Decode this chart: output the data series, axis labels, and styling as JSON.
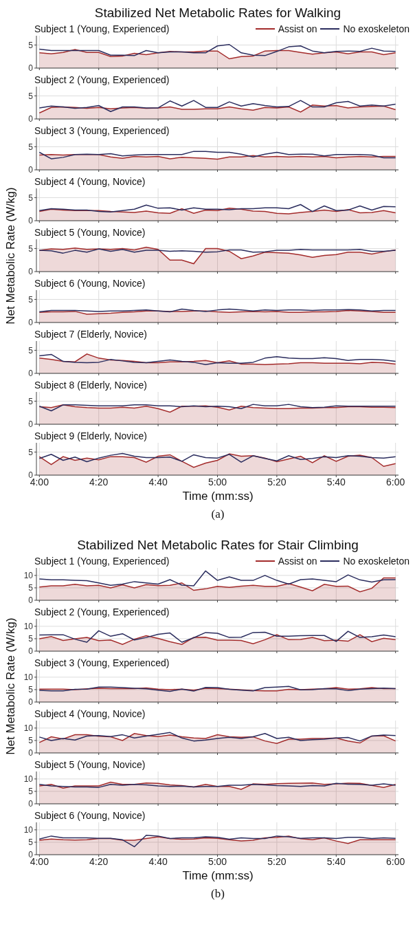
{
  "chart_data": [
    {
      "type": "line",
      "title": "Stabilized Net Metabolic Rates for Walking",
      "subtitle": "Subject 1 (Young, Experienced)",
      "legend": "top right",
      "grid": true,
      "tick_labels": "y",
      "x": [
        240,
        244,
        248,
        252,
        256,
        260,
        264,
        268,
        272,
        276,
        280,
        284,
        288,
        292,
        296,
        300,
        304,
        308,
        312,
        316,
        320,
        324,
        328,
        332,
        336,
        340,
        344,
        348,
        352,
        356,
        360
      ],
      "xlim": [
        239,
        361
      ],
      "xticks": [
        {
          "value": 240,
          "label": null
        },
        {
          "value": 260,
          "label": null
        },
        {
          "value": 280,
          "label": null
        },
        {
          "value": 300,
          "label": null
        },
        {
          "value": 320,
          "label": null
        },
        {
          "value": 340,
          "label": null
        },
        {
          "value": 360,
          "label": null
        }
      ],
      "ylim": [
        0,
        7
      ],
      "yticks": [
        0,
        5
      ],
      "series": [
        {
          "name": "Assist on",
          "type": "area",
          "color": "#a32b2b",
          "values": [
            3.3,
            3.1,
            3.4,
            4.0,
            3.4,
            3.4,
            2.5,
            2.6,
            3.2,
            2.9,
            3.3,
            3.6,
            3.5,
            3.5,
            3.7,
            3.7,
            2.0,
            2.5,
            2.6,
            3.7,
            3.8,
            3.8,
            3.4,
            3.0,
            3.3,
            3.5,
            3.1,
            3.5,
            3.5,
            2.9,
            3.3
          ]
        },
        {
          "name": "No exoskeleton",
          "type": "line",
          "color": "#2b2d5e",
          "values": [
            4.1,
            3.8,
            3.8,
            3.8,
            3.8,
            3.8,
            2.8,
            2.8,
            2.7,
            3.8,
            3.3,
            3.5,
            3.5,
            3.3,
            3.3,
            4.8,
            5.1,
            3.3,
            2.8,
            2.7,
            3.6,
            4.6,
            4.8,
            3.7,
            3.3,
            3.6,
            3.7,
            3.6,
            4.3,
            3.7,
            3.6
          ]
        }
      ]
    },
    {
      "type": "line",
      "subtitle": "Subject 2 (Young, Experienced)",
      "grid": true,
      "tick_labels": "y",
      "x": [
        240,
        244,
        248,
        252,
        256,
        260,
        264,
        268,
        272,
        276,
        280,
        284,
        288,
        292,
        296,
        300,
        304,
        308,
        312,
        316,
        320,
        324,
        328,
        332,
        336,
        340,
        344,
        348,
        352,
        356,
        360
      ],
      "xlim": [
        239,
        361
      ],
      "xticks": [
        {
          "value": 240,
          "label": null
        },
        {
          "value": 260,
          "label": null
        },
        {
          "value": 280,
          "label": null
        },
        {
          "value": 300,
          "label": null
        },
        {
          "value": 320,
          "label": null
        },
        {
          "value": 340,
          "label": null
        },
        {
          "value": 360,
          "label": null
        }
      ],
      "ylim": [
        0,
        7
      ],
      "yticks": [
        0,
        5
      ],
      "series": [
        {
          "type": "area",
          "color": "#a32b2b",
          "values": [
            1.3,
            2.5,
            2.6,
            2.5,
            2.3,
            2.5,
            2.2,
            2.4,
            2.5,
            2.3,
            2.4,
            2.6,
            2.1,
            2.1,
            2.2,
            2.2,
            2.6,
            2.2,
            1.9,
            2.5,
            2.4,
            2.6,
            1.5,
            3.0,
            2.8,
            2.9,
            2.4,
            2.6,
            2.7,
            2.8,
            2.0
          ]
        },
        {
          "type": "line",
          "color": "#2b2d5e",
          "values": [
            2.4,
            2.8,
            2.6,
            2.3,
            2.5,
            2.9,
            1.6,
            2.6,
            2.6,
            2.4,
            2.4,
            3.9,
            2.8,
            4.0,
            2.5,
            2.5,
            3.7,
            2.8,
            3.3,
            2.9,
            2.6,
            2.7,
            4.0,
            2.6,
            2.6,
            3.5,
            3.8,
            2.8,
            3.0,
            2.8,
            3.2
          ]
        }
      ]
    },
    {
      "type": "line",
      "subtitle": "Subject 3 (Young, Experienced)",
      "grid": true,
      "tick_labels": "y",
      "x": [
        240,
        244,
        248,
        252,
        256,
        260,
        264,
        268,
        272,
        276,
        280,
        284,
        288,
        292,
        296,
        300,
        304,
        308,
        312,
        316,
        320,
        324,
        328,
        332,
        336,
        340,
        344,
        348,
        352,
        356,
        360
      ],
      "xlim": [
        239,
        361
      ],
      "xticks": [
        {
          "value": 240,
          "label": null
        },
        {
          "value": 260,
          "label": null
        },
        {
          "value": 280,
          "label": null
        },
        {
          "value": 300,
          "label": null
        },
        {
          "value": 320,
          "label": null
        },
        {
          "value": 340,
          "label": null
        },
        {
          "value": 360,
          "label": null
        }
      ],
      "ylim": [
        0,
        7
      ],
      "yticks": [
        0,
        5
      ],
      "series": [
        {
          "type": "area",
          "color": "#a32b2b",
          "values": [
            3.2,
            3.3,
            3.2,
            3.3,
            3.3,
            3.3,
            2.8,
            2.5,
            2.9,
            2.8,
            2.9,
            2.4,
            2.7,
            2.6,
            2.5,
            2.3,
            2.8,
            2.8,
            3.1,
            2.8,
            2.9,
            2.8,
            2.9,
            2.8,
            2.9,
            2.6,
            2.8,
            2.9,
            2.8,
            2.9,
            2.9
          ]
        },
        {
          "type": "line",
          "color": "#2b2d5e",
          "values": [
            3.8,
            2.4,
            2.7,
            3.3,
            3.4,
            3.3,
            3.5,
            3.0,
            3.2,
            3.3,
            3.3,
            3.3,
            3.3,
            4.0,
            4.0,
            3.8,
            3.8,
            3.4,
            2.8,
            3.4,
            3.8,
            3.3,
            3.4,
            3.4,
            3.0,
            3.3,
            3.3,
            3.3,
            3.2,
            2.6,
            2.6
          ]
        }
      ]
    },
    {
      "type": "line",
      "subtitle": "Subject 4 (Young, Novice)",
      "grid": true,
      "tick_labels": "y",
      "x": [
        240,
        244,
        248,
        252,
        256,
        260,
        264,
        268,
        272,
        276,
        280,
        284,
        288,
        292,
        296,
        300,
        304,
        308,
        312,
        316,
        320,
        324,
        328,
        332,
        336,
        340,
        344,
        348,
        352,
        356,
        360
      ],
      "xlim": [
        239,
        361
      ],
      "xticks": [
        {
          "value": 240,
          "label": null
        },
        {
          "value": 260,
          "label": null
        },
        {
          "value": 280,
          "label": null
        },
        {
          "value": 300,
          "label": null
        },
        {
          "value": 320,
          "label": null
        },
        {
          "value": 340,
          "label": null
        },
        {
          "value": 360,
          "label": null
        }
      ],
      "ylim": [
        0,
        7
      ],
      "yticks": [
        0,
        5
      ],
      "series": [
        {
          "type": "area",
          "color": "#a32b2b",
          "values": [
            2.0,
            2.5,
            2.3,
            2.2,
            2.2,
            2.2,
            2.0,
            1.9,
            1.8,
            2.1,
            1.7,
            1.6,
            2.6,
            1.6,
            2.3,
            2.2,
            2.7,
            2.5,
            2.1,
            2.0,
            1.6,
            1.5,
            1.8,
            2.0,
            2.3,
            2.0,
            2.4,
            1.7,
            1.8,
            2.2,
            1.7
          ]
        },
        {
          "type": "line",
          "color": "#2b2d5e",
          "values": [
            2.2,
            2.6,
            2.5,
            2.3,
            2.3,
            2.0,
            1.9,
            2.2,
            2.5,
            3.4,
            2.7,
            2.8,
            2.3,
            2.8,
            2.5,
            2.5,
            2.4,
            2.6,
            2.6,
            2.8,
            2.8,
            2.6,
            3.5,
            2.0,
            3.2,
            2.2,
            2.3,
            3.2,
            2.3,
            3.1,
            3.0
          ]
        }
      ]
    },
    {
      "type": "line",
      "subtitle": "Subject 5 (Young, Novice)",
      "ylabel": "Net Metabolic Rate (W/kg)",
      "grid": true,
      "tick_labels": "y",
      "x": [
        240,
        244,
        248,
        252,
        256,
        260,
        264,
        268,
        272,
        276,
        280,
        284,
        288,
        292,
        296,
        300,
        304,
        308,
        312,
        316,
        320,
        324,
        328,
        332,
        336,
        340,
        344,
        348,
        352,
        356,
        360
      ],
      "xlim": [
        239,
        361
      ],
      "xticks": [
        {
          "value": 240,
          "label": null
        },
        {
          "value": 260,
          "label": null
        },
        {
          "value": 280,
          "label": null
        },
        {
          "value": 300,
          "label": null
        },
        {
          "value": 320,
          "label": null
        },
        {
          "value": 340,
          "label": null
        },
        {
          "value": 360,
          "label": null
        }
      ],
      "ylim": [
        0,
        7
      ],
      "yticks": [
        0,
        5
      ],
      "series": [
        {
          "type": "area",
          "color": "#a32b2b",
          "values": [
            4.6,
            4.9,
            4.8,
            5.1,
            4.8,
            4.9,
            4.8,
            5.0,
            4.7,
            5.3,
            4.8,
            2.5,
            2.5,
            1.7,
            5.0,
            5.0,
            4.4,
            2.8,
            3.4,
            4.2,
            4.1,
            4.0,
            3.6,
            3.1,
            3.5,
            3.7,
            4.2,
            4.2,
            3.8,
            4.3,
            4.7
          ]
        },
        {
          "type": "line",
          "color": "#2b2d5e",
          "values": [
            4.6,
            4.5,
            4.0,
            4.6,
            4.2,
            4.9,
            4.4,
            4.8,
            4.2,
            4.6,
            4.6,
            4.4,
            4.5,
            4.4,
            4.2,
            4.3,
            4.7,
            4.7,
            4.2,
            4.3,
            4.6,
            4.6,
            4.8,
            4.7,
            4.7,
            4.7,
            4.7,
            4.8,
            4.4,
            4.4,
            4.6
          ]
        }
      ]
    },
    {
      "type": "line",
      "subtitle": "Subject 6 (Young, Novice)",
      "grid": true,
      "tick_labels": "y",
      "x": [
        240,
        244,
        248,
        252,
        256,
        260,
        264,
        268,
        272,
        276,
        280,
        284,
        288,
        292,
        296,
        300,
        304,
        308,
        312,
        316,
        320,
        324,
        328,
        332,
        336,
        340,
        344,
        348,
        352,
        356,
        360
      ],
      "xlim": [
        239,
        361
      ],
      "xticks": [
        {
          "value": 240,
          "label": null
        },
        {
          "value": 260,
          "label": null
        },
        {
          "value": 280,
          "label": null
        },
        {
          "value": 300,
          "label": null
        },
        {
          "value": 320,
          "label": null
        },
        {
          "value": 340,
          "label": null
        },
        {
          "value": 360,
          "label": null
        }
      ],
      "ylim": [
        0,
        7
      ],
      "yticks": [
        0,
        5
      ],
      "series": [
        {
          "type": "area",
          "color": "#a32b2b",
          "values": [
            2.2,
            2.3,
            2.3,
            2.4,
            1.8,
            1.9,
            2.0,
            2.2,
            2.3,
            2.5,
            2.5,
            2.4,
            2.4,
            2.5,
            2.5,
            2.3,
            2.2,
            2.3,
            2.4,
            2.3,
            2.4,
            2.2,
            2.2,
            2.3,
            2.3,
            2.4,
            2.6,
            2.5,
            2.4,
            2.2,
            2.2
          ]
        },
        {
          "type": "line",
          "color": "#2b2d5e",
          "values": [
            2.3,
            2.6,
            2.6,
            2.6,
            2.5,
            2.4,
            2.5,
            2.5,
            2.6,
            2.7,
            2.5,
            2.3,
            2.9,
            2.6,
            2.4,
            2.7,
            2.9,
            2.7,
            2.5,
            2.7,
            2.6,
            2.7,
            2.7,
            2.6,
            2.7,
            2.7,
            2.8,
            2.7,
            2.5,
            2.6,
            2.6
          ]
        }
      ]
    },
    {
      "type": "line",
      "subtitle": "Subject 7 (Elderly, Novice)",
      "grid": true,
      "tick_labels": "y",
      "x": [
        240,
        244,
        248,
        252,
        256,
        260,
        264,
        268,
        272,
        276,
        280,
        284,
        288,
        292,
        296,
        300,
        304,
        308,
        312,
        316,
        320,
        324,
        328,
        332,
        336,
        340,
        344,
        348,
        352,
        356,
        360
      ],
      "xlim": [
        239,
        361
      ],
      "xticks": [
        {
          "value": 240,
          "label": null
        },
        {
          "value": 260,
          "label": null
        },
        {
          "value": 280,
          "label": null
        },
        {
          "value": 300,
          "label": null
        },
        {
          "value": 320,
          "label": null
        },
        {
          "value": 340,
          "label": null
        },
        {
          "value": 360,
          "label": null
        }
      ],
      "ylim": [
        0,
        7
      ],
      "yticks": [
        0,
        5
      ],
      "series": [
        {
          "type": "area",
          "color": "#a32b2b",
          "values": [
            3.3,
            3.0,
            2.6,
            2.5,
            4.2,
            3.3,
            2.9,
            2.8,
            2.6,
            2.3,
            2.3,
            2.5,
            2.5,
            2.6,
            2.8,
            2.3,
            2.7,
            2.0,
            2.0,
            1.9,
            2.0,
            2.1,
            2.3,
            2.3,
            2.2,
            2.2,
            2.2,
            2.1,
            2.4,
            2.3,
            2.0
          ]
        },
        {
          "type": "line",
          "color": "#2b2d5e",
          "values": [
            3.8,
            4.1,
            2.6,
            2.4,
            2.3,
            2.4,
            3.0,
            2.7,
            2.4,
            2.3,
            2.6,
            2.9,
            2.6,
            2.4,
            1.9,
            2.3,
            2.2,
            2.2,
            2.4,
            3.3,
            3.6,
            3.3,
            3.2,
            3.2,
            3.4,
            3.2,
            2.8,
            3.0,
            3.0,
            2.9,
            2.6
          ]
        }
      ]
    },
    {
      "type": "line",
      "subtitle": "Subject 8 (Elderly, Novice)",
      "grid": true,
      "tick_labels": "y",
      "x": [
        240,
        244,
        248,
        252,
        256,
        260,
        264,
        268,
        272,
        276,
        280,
        284,
        288,
        292,
        296,
        300,
        304,
        308,
        312,
        316,
        320,
        324,
        328,
        332,
        336,
        340,
        344,
        348,
        352,
        356,
        360
      ],
      "xlim": [
        239,
        361
      ],
      "xticks": [
        {
          "value": 240,
          "label": null
        },
        {
          "value": 260,
          "label": null
        },
        {
          "value": 280,
          "label": null
        },
        {
          "value": 300,
          "label": null
        },
        {
          "value": 320,
          "label": null
        },
        {
          "value": 340,
          "label": null
        },
        {
          "value": 360,
          "label": null
        }
      ],
      "ylim": [
        0,
        7
      ],
      "yticks": [
        0,
        5
      ],
      "series": [
        {
          "type": "area",
          "color": "#a32b2b",
          "values": [
            3.8,
            3.6,
            4.2,
            3.8,
            3.6,
            3.5,
            3.5,
            3.7,
            3.5,
            3.9,
            3.4,
            2.6,
            3.9,
            3.9,
            4.0,
            3.7,
            3.1,
            3.9,
            3.6,
            3.5,
            3.4,
            3.4,
            3.5,
            3.5,
            3.6,
            3.6,
            3.8,
            3.8,
            3.7,
            3.7,
            3.6
          ]
        },
        {
          "type": "line",
          "color": "#2b2d5e",
          "values": [
            3.9,
            2.9,
            4.2,
            4.2,
            4.1,
            4.0,
            4.0,
            4.0,
            4.2,
            4.2,
            4.0,
            4.0,
            3.8,
            4.0,
            3.8,
            3.9,
            3.8,
            3.4,
            4.3,
            4.0,
            4.0,
            4.3,
            3.8,
            3.6,
            3.7,
            4.0,
            3.9,
            3.9,
            3.9,
            3.9,
            3.9
          ]
        }
      ]
    },
    {
      "type": "line",
      "subtitle": "Subject 9 (Elderly, Novice)",
      "xlabel": "Time (mm:ss)",
      "annotations": [
        "(a)"
      ],
      "grid": true,
      "x": [
        240,
        244,
        248,
        252,
        256,
        260,
        264,
        268,
        272,
        276,
        280,
        284,
        288,
        292,
        296,
        300,
        304,
        308,
        312,
        316,
        320,
        324,
        328,
        332,
        336,
        340,
        344,
        348,
        352,
        356,
        360
      ],
      "xlim": [
        239,
        361
      ],
      "xticks": [
        {
          "value": 240,
          "label": "4:00"
        },
        {
          "value": 260,
          "label": "4:20"
        },
        {
          "value": 280,
          "label": "4:40"
        },
        {
          "value": 300,
          "label": "5:00"
        },
        {
          "value": 320,
          "label": "5:20"
        },
        {
          "value": 340,
          "label": "5:40"
        },
        {
          "value": 360,
          "label": "6:00"
        }
      ],
      "ylim": [
        0,
        7
      ],
      "yticks": [
        0,
        5
      ],
      "series": [
        {
          "type": "area",
          "color": "#a32b2b",
          "values": [
            4.0,
            2.3,
            4.0,
            3.2,
            3.7,
            3.3,
            4.0,
            4.0,
            3.8,
            2.8,
            4.1,
            4.4,
            3.0,
            1.7,
            2.6,
            3.2,
            4.6,
            4.1,
            4.2,
            3.7,
            2.9,
            3.5,
            4.1,
            2.7,
            4.2,
            3.0,
            4.1,
            4.3,
            3.8,
            1.9,
            2.5
          ]
        },
        {
          "type": "line",
          "color": "#2b2d5e",
          "values": [
            3.6,
            4.5,
            3.2,
            3.9,
            2.9,
            3.7,
            4.3,
            4.7,
            4.1,
            3.8,
            3.8,
            3.9,
            3.0,
            4.4,
            3.8,
            3.7,
            4.5,
            2.8,
            4.2,
            3.6,
            3.1,
            4.2,
            3.4,
            3.6,
            4.0,
            3.8,
            4.2,
            4.1,
            3.8,
            3.7,
            4.0
          ]
        }
      ]
    },
    {
      "type": "line",
      "title": "Stabilized Net Metabolic Rates for Stair Climbing",
      "subtitle": "Subject 1 (Young, Experienced)",
      "legend": "top right",
      "grid": true,
      "tick_labels": "y",
      "x": [
        240,
        244,
        248,
        252,
        256,
        260,
        264,
        268,
        272,
        276,
        280,
        284,
        288,
        292,
        296,
        300,
        304,
        308,
        312,
        316,
        320,
        324,
        328,
        332,
        336,
        340,
        344,
        348,
        352,
        356,
        360
      ],
      "xlim": [
        239,
        361
      ],
      "xticks": [
        {
          "value": 240,
          "label": null
        },
        {
          "value": 260,
          "label": null
        },
        {
          "value": 280,
          "label": null
        },
        {
          "value": 300,
          "label": null
        },
        {
          "value": 320,
          "label": null
        },
        {
          "value": 340,
          "label": null
        },
        {
          "value": 360,
          "label": null
        }
      ],
      "ylim": [
        0,
        13
      ],
      "yticks": [
        0,
        5,
        10
      ],
      "series": [
        {
          "name": "Assist on",
          "type": "area",
          "color": "#a32b2b",
          "values": [
            5.3,
            5.8,
            5.8,
            6.4,
            5.8,
            6.0,
            5.0,
            6.2,
            5.0,
            6.3,
            5.9,
            6.0,
            7.0,
            4.0,
            4.6,
            5.6,
            5.2,
            5.7,
            6.0,
            5.6,
            5.6,
            6.7,
            5.3,
            3.8,
            6.4,
            5.6,
            5.7,
            3.4,
            4.8,
            9.0,
            9.0
          ]
        },
        {
          "name": "No exoskeleton",
          "type": "line",
          "color": "#2b2d5e",
          "values": [
            8.6,
            8.2,
            8.2,
            8.0,
            7.9,
            7.0,
            6.0,
            6.5,
            7.5,
            7.0,
            6.5,
            8.3,
            6.1,
            5.8,
            11.8,
            8.0,
            9.4,
            8.0,
            8.0,
            10.0,
            8.0,
            6.5,
            8.3,
            8.6,
            8.0,
            7.5,
            10.2,
            8.2,
            7.3,
            8.2,
            8.3
          ]
        }
      ]
    },
    {
      "type": "line",
      "subtitle": "Subject 2 (Young, Experienced)",
      "grid": true,
      "tick_labels": "y",
      "x": [
        240,
        244,
        248,
        252,
        256,
        260,
        264,
        268,
        272,
        276,
        280,
        284,
        288,
        292,
        296,
        300,
        304,
        308,
        312,
        316,
        320,
        324,
        328,
        332,
        336,
        340,
        344,
        348,
        352,
        356,
        360
      ],
      "xlim": [
        239,
        361
      ],
      "xticks": [
        {
          "value": 240,
          "label": null
        },
        {
          "value": 260,
          "label": null
        },
        {
          "value": 280,
          "label": null
        },
        {
          "value": 300,
          "label": null
        },
        {
          "value": 320,
          "label": null
        },
        {
          "value": 340,
          "label": null
        },
        {
          "value": 360,
          "label": null
        }
      ],
      "ylim": [
        0,
        13
      ],
      "yticks": [
        0,
        5,
        10
      ],
      "series": [
        {
          "type": "area",
          "color": "#a32b2b",
          "values": [
            5.0,
            5.9,
            4.3,
            5.0,
            5.5,
            4.2,
            4.5,
            2.7,
            4.8,
            6.2,
            5.1,
            3.8,
            2.7,
            5.5,
            5.6,
            4.4,
            4.4,
            4.3,
            3.0,
            4.6,
            6.6,
            4.6,
            4.7,
            5.5,
            4.2,
            4.4,
            4.0,
            6.6,
            3.8,
            5.2,
            4.6
          ]
        },
        {
          "type": "line",
          "color": "#2b2d5e",
          "values": [
            6.5,
            6.6,
            6.6,
            4.8,
            3.6,
            8.2,
            6.0,
            7.0,
            4.5,
            5.5,
            6.8,
            7.3,
            3.6,
            5.4,
            7.5,
            7.2,
            5.5,
            5.6,
            7.5,
            7.6,
            6.0,
            6.0,
            6.2,
            6.3,
            6.3,
            3.9,
            8.0,
            5.5,
            5.8,
            6.5,
            5.8
          ]
        }
      ]
    },
    {
      "type": "line",
      "subtitle": "Subject 3 (Young, Experienced)",
      "ylabel": "Net Metabolic Rate (W/kg)",
      "grid": true,
      "tick_labels": "y",
      "x": [
        240,
        244,
        248,
        252,
        256,
        260,
        264,
        268,
        272,
        276,
        280,
        284,
        288,
        292,
        296,
        300,
        304,
        308,
        312,
        316,
        320,
        324,
        328,
        332,
        336,
        340,
        344,
        348,
        352,
        356,
        360
      ],
      "xlim": [
        239,
        361
      ],
      "xticks": [
        {
          "value": 240,
          "label": null
        },
        {
          "value": 260,
          "label": null
        },
        {
          "value": 280,
          "label": null
        },
        {
          "value": 300,
          "label": null
        },
        {
          "value": 320,
          "label": null
        },
        {
          "value": 340,
          "label": null
        },
        {
          "value": 360,
          "label": null
        }
      ],
      "ylim": [
        0,
        13
      ],
      "yticks": [
        0,
        5,
        10
      ],
      "series": [
        {
          "type": "area",
          "color": "#a32b2b",
          "values": [
            5.2,
            5.2,
            5.2,
            5.0,
            5.3,
            5.5,
            5.4,
            5.4,
            5.4,
            5.7,
            5.2,
            5.0,
            5.2,
            4.8,
            5.5,
            5.4,
            5.2,
            4.9,
            4.6,
            4.5,
            4.5,
            5.1,
            5.0,
            5.2,
            5.3,
            5.8,
            5.2,
            5.3,
            5.8,
            5.4,
            5.4
          ]
        },
        {
          "type": "line",
          "color": "#2b2d5e",
          "values": [
            4.7,
            4.5,
            4.5,
            5.1,
            5.2,
            6.0,
            6.0,
            5.8,
            5.5,
            5.3,
            4.8,
            4.3,
            5.2,
            4.4,
            5.9,
            5.8,
            5.1,
            4.8,
            4.5,
            5.8,
            6.0,
            6.3,
            4.9,
            5.0,
            5.4,
            5.3,
            4.6,
            5.2,
            5.4,
            5.6,
            5.4
          ]
        }
      ]
    },
    {
      "type": "line",
      "subtitle": "Subject 4 (Young, Novice)",
      "grid": true,
      "tick_labels": "y",
      "x": [
        240,
        244,
        248,
        252,
        256,
        260,
        264,
        268,
        272,
        276,
        280,
        284,
        288,
        292,
        296,
        300,
        304,
        308,
        312,
        316,
        320,
        324,
        328,
        332,
        336,
        340,
        344,
        348,
        352,
        356,
        360
      ],
      "xlim": [
        239,
        361
      ],
      "xticks": [
        {
          "value": 240,
          "label": null
        },
        {
          "value": 260,
          "label": null
        },
        {
          "value": 280,
          "label": null
        },
        {
          "value": 300,
          "label": null
        },
        {
          "value": 320,
          "label": null
        },
        {
          "value": 340,
          "label": null
        },
        {
          "value": 360,
          "label": null
        }
      ],
      "ylim": [
        0,
        13
      ],
      "yticks": [
        0,
        5,
        10
      ],
      "series": [
        {
          "type": "area",
          "color": "#a32b2b",
          "values": [
            4.2,
            6.5,
            5.6,
            7.3,
            7.3,
            6.7,
            6.5,
            5.0,
            7.8,
            7.0,
            6.6,
            7.2,
            6.5,
            6.0,
            5.8,
            7.3,
            6.5,
            6.3,
            6.5,
            4.8,
            3.8,
            5.5,
            5.5,
            5.8,
            5.8,
            6.0,
            4.8,
            4.0,
            6.8,
            6.9,
            4.8
          ]
        },
        {
          "type": "line",
          "color": "#2b2d5e",
          "values": [
            6.4,
            5.0,
            5.8,
            5.2,
            6.8,
            7.0,
            6.6,
            7.3,
            6.0,
            6.8,
            7.5,
            8.2,
            6.0,
            4.8,
            5.2,
            5.8,
            6.3,
            5.8,
            6.5,
            7.8,
            5.8,
            6.3,
            5.0,
            5.3,
            5.5,
            6.0,
            6.2,
            4.8,
            6.8,
            7.2,
            7.0
          ]
        }
      ]
    },
    {
      "type": "line",
      "subtitle": "Subject 5 (Young, Novice)",
      "grid": true,
      "tick_labels": "y",
      "x": [
        240,
        244,
        248,
        252,
        256,
        260,
        264,
        268,
        272,
        276,
        280,
        284,
        288,
        292,
        296,
        300,
        304,
        308,
        312,
        316,
        320,
        324,
        328,
        332,
        336,
        340,
        344,
        348,
        352,
        356,
        360
      ],
      "xlim": [
        239,
        361
      ],
      "xticks": [
        {
          "value": 240,
          "label": null
        },
        {
          "value": 260,
          "label": null
        },
        {
          "value": 280,
          "label": null
        },
        {
          "value": 300,
          "label": null
        },
        {
          "value": 320,
          "label": null
        },
        {
          "value": 340,
          "label": null
        },
        {
          "value": 360,
          "label": null
        }
      ],
      "ylim": [
        0,
        13
      ],
      "yticks": [
        0,
        5,
        10
      ],
      "series": [
        {
          "type": "area",
          "color": "#a32b2b",
          "values": [
            7.2,
            7.8,
            6.3,
            7.2,
            7.2,
            7.2,
            8.7,
            7.8,
            7.8,
            8.4,
            8.2,
            7.6,
            7.3,
            6.8,
            7.8,
            7.0,
            7.0,
            5.8,
            8.0,
            7.8,
            8.1,
            8.2,
            8.3,
            8.4,
            7.8,
            8.0,
            8.3,
            8.2,
            7.4,
            6.6,
            7.8
          ]
        },
        {
          "type": "line",
          "color": "#2b2d5e",
          "values": [
            7.8,
            7.2,
            7.0,
            6.8,
            6.8,
            6.6,
            7.8,
            7.5,
            7.8,
            7.6,
            7.2,
            7.0,
            7.1,
            6.8,
            7.0,
            7.0,
            7.5,
            7.5,
            7.8,
            7.6,
            7.3,
            7.2,
            7.0,
            7.3,
            7.2,
            8.2,
            7.9,
            7.8,
            7.5,
            8.0,
            7.5
          ]
        }
      ]
    },
    {
      "type": "line",
      "subtitle": "Subject 6 (Young, Novice)",
      "xlabel": "Time (mm:ss)",
      "annotations": [
        "(b)"
      ],
      "grid": true,
      "x": [
        240,
        244,
        248,
        252,
        256,
        260,
        264,
        268,
        272,
        276,
        280,
        284,
        288,
        292,
        296,
        300,
        304,
        308,
        312,
        316,
        320,
        324,
        328,
        332,
        336,
        340,
        344,
        348,
        352,
        356,
        360
      ],
      "xlim": [
        239,
        361
      ],
      "xticks": [
        {
          "value": 240,
          "label": "4:00"
        },
        {
          "value": 260,
          "label": "4:20"
        },
        {
          "value": 280,
          "label": "4:40"
        },
        {
          "value": 300,
          "label": "5:00"
        },
        {
          "value": 320,
          "label": "5:20"
        },
        {
          "value": 340,
          "label": "5:40"
        },
        {
          "value": 360,
          "label": "6:00"
        }
      ],
      "ylim": [
        0,
        13
      ],
      "yticks": [
        0,
        5,
        10
      ],
      "series": [
        {
          "type": "area",
          "color": "#a32b2b",
          "values": [
            5.8,
            6.3,
            6.0,
            5.9,
            6.0,
            6.5,
            6.5,
            5.8,
            5.8,
            6.5,
            7.2,
            6.5,
            6.2,
            6.3,
            6.8,
            6.6,
            6.0,
            5.5,
            5.8,
            6.8,
            7.0,
            7.5,
            6.4,
            6.0,
            6.8,
            5.5,
            4.5,
            6.0,
            6.0,
            6.0,
            6.0
          ]
        },
        {
          "type": "line",
          "color": "#2b2d5e",
          "values": [
            6.3,
            7.5,
            6.8,
            6.8,
            6.8,
            6.6,
            6.6,
            6.0,
            3.2,
            7.8,
            7.5,
            6.5,
            6.8,
            6.8,
            7.2,
            7.0,
            6.2,
            6.8,
            6.5,
            6.5,
            7.5,
            7.2,
            6.6,
            6.8,
            6.8,
            6.5,
            7.0,
            7.0,
            6.5,
            6.8,
            6.6
          ]
        }
      ]
    }
  ]
}
